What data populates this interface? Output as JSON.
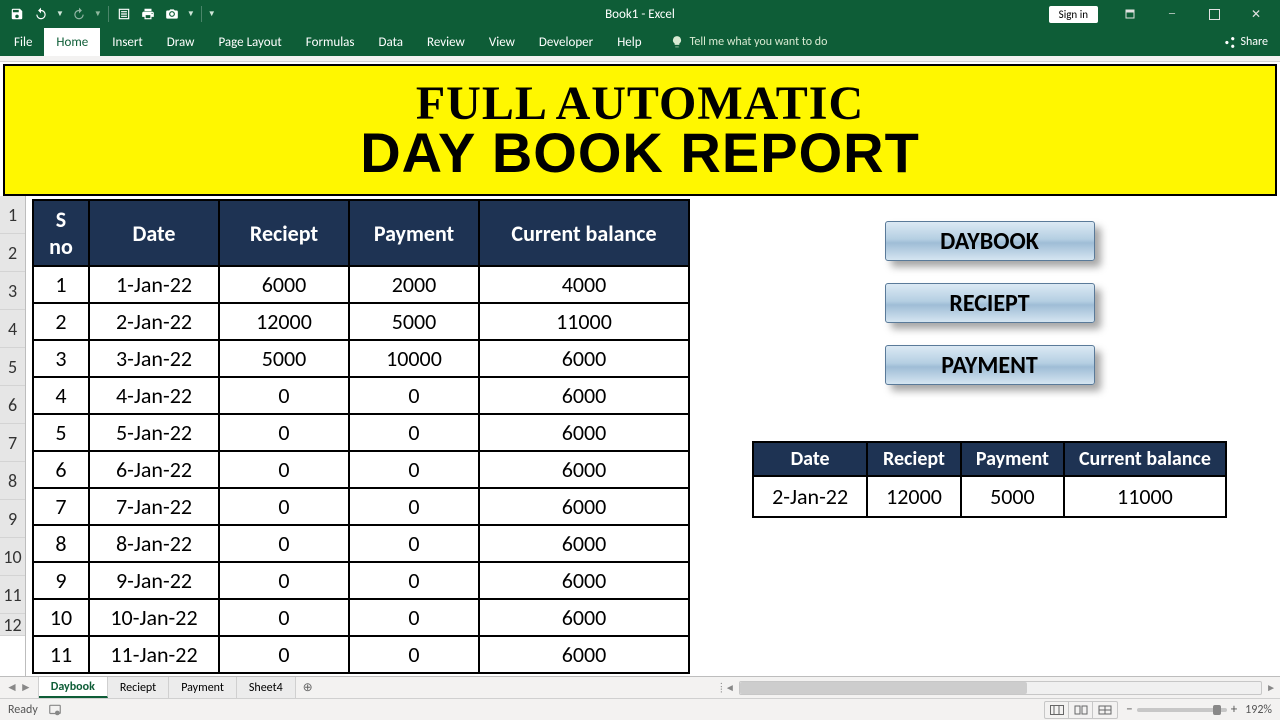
{
  "window": {
    "title": "Book1 - Excel",
    "signin": "Sign in"
  },
  "ribbon": {
    "tabs": [
      "File",
      "Home",
      "Insert",
      "Draw",
      "Page Layout",
      "Formulas",
      "Data",
      "Review",
      "View",
      "Developer",
      "Help"
    ],
    "active": "Home",
    "tellme": "Tell me what you want to do",
    "share": "Share"
  },
  "banner": {
    "line1": "FULL AUTOMATIC",
    "line2": "DAY BOOK REPORT"
  },
  "rownums": [
    "1",
    "2",
    "3",
    "4",
    "5",
    "6",
    "7",
    "8",
    "9",
    "10",
    "11",
    "12"
  ],
  "table": {
    "headers": [
      "S no",
      "Date",
      "Reciept",
      "Payment",
      "Current balance"
    ],
    "rows": [
      [
        "1",
        "1-Jan-22",
        "6000",
        "2000",
        "4000"
      ],
      [
        "2",
        "2-Jan-22",
        "12000",
        "5000",
        "11000"
      ],
      [
        "3",
        "3-Jan-22",
        "5000",
        "10000",
        "6000"
      ],
      [
        "4",
        "4-Jan-22",
        "0",
        "0",
        "6000"
      ],
      [
        "5",
        "5-Jan-22",
        "0",
        "0",
        "6000"
      ],
      [
        "6",
        "6-Jan-22",
        "0",
        "0",
        "6000"
      ],
      [
        "7",
        "7-Jan-22",
        "0",
        "0",
        "6000"
      ],
      [
        "8",
        "8-Jan-22",
        "0",
        "0",
        "6000"
      ],
      [
        "9",
        "9-Jan-22",
        "0",
        "0",
        "6000"
      ],
      [
        "10",
        "10-Jan-22",
        "0",
        "0",
        "6000"
      ],
      [
        "11",
        "11-Jan-22",
        "0",
        "0",
        "6000"
      ]
    ],
    "header_bg": "#1e3353",
    "header_fg": "#ffffff",
    "border_color": "#000000",
    "font_size_header": 22,
    "font_size_cell": 22
  },
  "buttons": {
    "b1": "DAYBOOK",
    "b2": "RECIEPT",
    "b3": "PAYMENT"
  },
  "summary": {
    "headers": [
      "Date",
      "Reciept",
      "Payment",
      "Current balance"
    ],
    "row": [
      "2-Jan-22",
      "12000",
      "5000",
      "11000"
    ]
  },
  "sheets": {
    "tabs": [
      "Daybook",
      "Reciept",
      "Payment",
      "Sheet4"
    ],
    "active": "Daybook"
  },
  "status": {
    "ready": "Ready",
    "zoom": "192%"
  },
  "colors": {
    "ribbon_green": "#0e5d37",
    "banner_yellow": "#fff700",
    "table_header_bg": "#1e3353"
  }
}
